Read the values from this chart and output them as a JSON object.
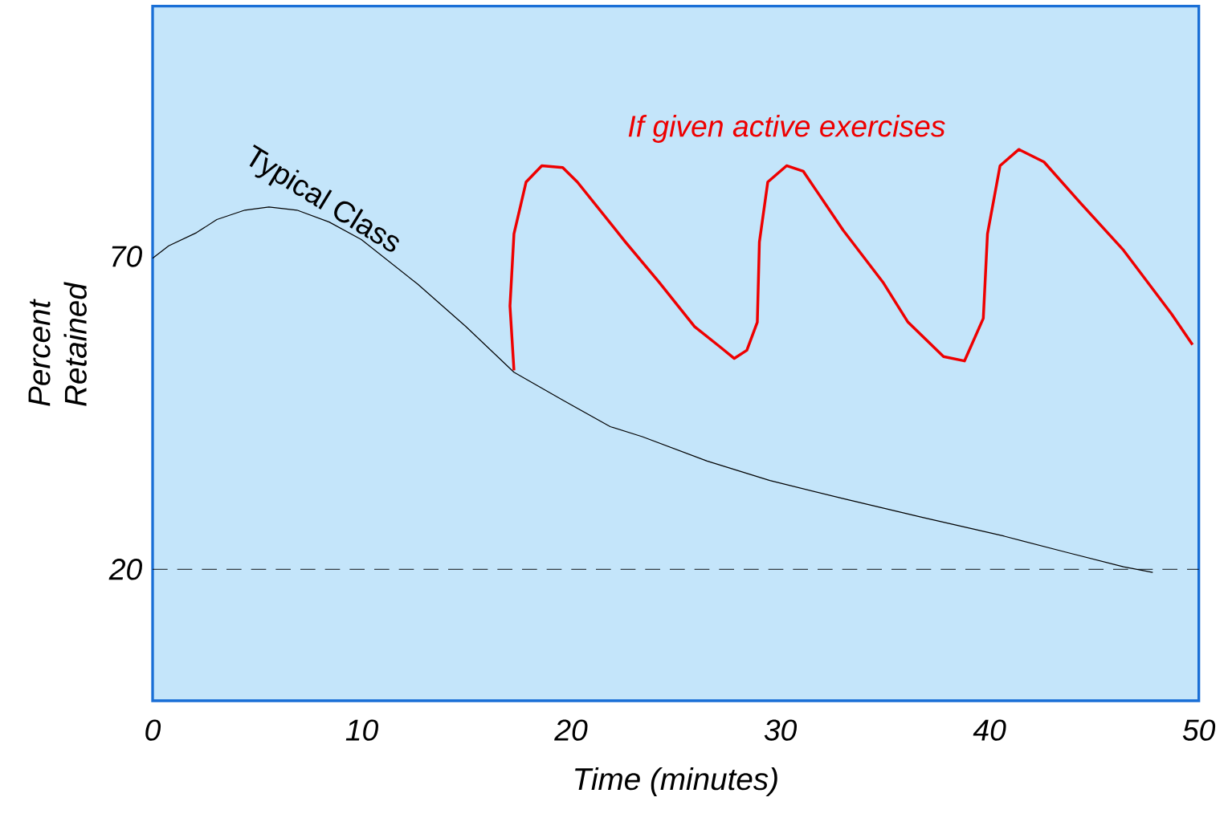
{
  "chart_data": {
    "type": "line",
    "xlabel": "Time (minutes)",
    "ylabel": "Percent Retained",
    "xlim": [
      0,
      50
    ],
    "ylim": [
      -1,
      110
    ],
    "xticks": [
      0,
      10,
      20,
      30,
      40,
      50
    ],
    "yticks": [
      20,
      70
    ],
    "ref_lines": [
      {
        "axis": "y",
        "value": 20,
        "color": "#000000",
        "line_style": "dashed"
      }
    ],
    "marker": "none",
    "series": [
      {
        "name": "Typical Class",
        "color": "#000000",
        "x": [
          0,
          0.77,
          2.1,
          3.07,
          4.41,
          5.56,
          6.9,
          8.44,
          9.98,
          12.66,
          14.97,
          17.27,
          19.57,
          21.87,
          23.4,
          26.5,
          29.5,
          33,
          36.8,
          40.7,
          43.7,
          46.4,
          47.8
        ],
        "values": [
          69.7,
          71.7,
          73.8,
          75.9,
          77.4,
          77.9,
          77.4,
          75.5,
          72.7,
          65.6,
          58.8,
          51.5,
          47.1,
          42.8,
          41.2,
          37.3,
          34.2,
          31.3,
          28.3,
          25.3,
          22.7,
          20.4,
          19.5
        ]
      },
      {
        "name": "If given active exercises",
        "color": "#ee0000",
        "x": [
          17.27,
          17.08,
          17.27,
          17.85,
          18.6,
          19.6,
          20.3,
          22.6,
          24.2,
          25.9,
          27.1,
          27.8,
          28.4,
          28.9,
          29.0,
          29.4,
          30.3,
          31.1,
          33.0,
          34.9,
          36.1,
          37.8,
          38.8,
          39.7,
          39.9,
          40.5,
          41.4,
          42.6,
          44.3,
          46.4,
          48.7,
          49.7
        ],
        "values": [
          51.8,
          62.1,
          73.6,
          81.9,
          84.5,
          84.2,
          81.9,
          72.3,
          65.9,
          58.8,
          55.6,
          53.7,
          55,
          59.5,
          72.3,
          81.9,
          84.5,
          83.6,
          74.2,
          65.9,
          59.5,
          54,
          53.3,
          60.1,
          73.6,
          84.5,
          87.1,
          85.1,
          78.7,
          71,
          60.8,
          55.9
        ]
      }
    ]
  }
}
